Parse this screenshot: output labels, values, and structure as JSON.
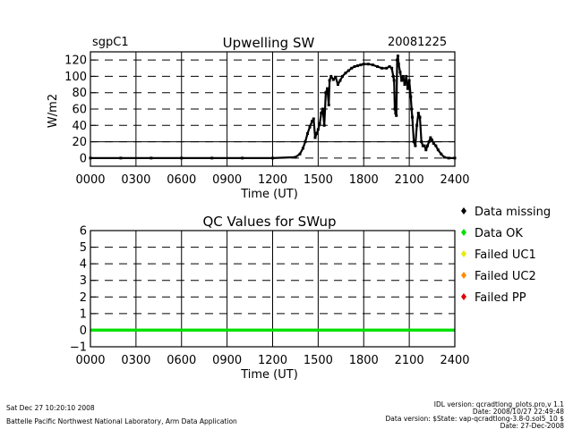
{
  "header": {
    "site": "sgpC1",
    "date": "20081225"
  },
  "legend": [
    {
      "label": "Data missing",
      "color": "#000000"
    },
    {
      "label": "Data OK",
      "color": "#00e000"
    },
    {
      "label": "Failed UC1",
      "color": "#e8e800"
    },
    {
      "label": "Failed UC2",
      "color": "#ff8c00"
    },
    {
      "label": "Failed PP",
      "color": "#e00000"
    }
  ],
  "footer": {
    "run_time": "Sat Dec 27 10:20:10 2008",
    "org": "Battelle Pacific Northwest National Laboratory, Arm Data Application",
    "idl_version": "IDL version: qcradtlong_plots.pro,v 1.1",
    "idl_date": "Date: 2008/10/27 22:49:48",
    "data_version": "Data version: $State: vap-qcradtlong-3.8-0.sol5_10 $",
    "data_date": "Date: 27-Dec-2008"
  },
  "chart_data": [
    {
      "type": "scatter",
      "title": "Upwelling SW",
      "xlabel": "Time (UT)",
      "ylabel": "W/m2",
      "xlim": [
        0,
        2400
      ],
      "ylim": [
        -10,
        130
      ],
      "x_ticks": [
        "0000",
        "0300",
        "0600",
        "0900",
        "1200",
        "1500",
        "1800",
        "2100",
        "2400"
      ],
      "y_ticks": [
        "0",
        "20",
        "40",
        "60",
        "80",
        "100",
        "120"
      ],
      "x_tick_values": [
        0,
        300,
        600,
        900,
        1200,
        1500,
        1800,
        2100,
        2400
      ],
      "y_tick_values": [
        0,
        20,
        40,
        60,
        80,
        100,
        120
      ],
      "reference_line_y": 20,
      "series": [
        {
          "color": "#000000",
          "points": [
            [
              0,
              0
            ],
            [
              200,
              0
            ],
            [
              400,
              0
            ],
            [
              600,
              0
            ],
            [
              800,
              0
            ],
            [
              1000,
              0
            ],
            [
              1200,
              0
            ],
            [
              1350,
              1
            ],
            [
              1380,
              5
            ],
            [
              1400,
              12
            ],
            [
              1415,
              20
            ],
            [
              1430,
              30
            ],
            [
              1445,
              38
            ],
            [
              1460,
              45
            ],
            [
              1470,
              48
            ],
            [
              1480,
              25
            ],
            [
              1490,
              30
            ],
            [
              1500,
              35
            ],
            [
              1510,
              42
            ],
            [
              1520,
              55
            ],
            [
              1530,
              60
            ],
            [
              1540,
              40
            ],
            [
              1550,
              80
            ],
            [
              1560,
              85
            ],
            [
              1570,
              65
            ],
            [
              1575,
              95
            ],
            [
              1585,
              100
            ],
            [
              1600,
              96
            ],
            [
              1615,
              99
            ],
            [
              1630,
              90
            ],
            [
              1645,
              95
            ],
            [
              1660,
              100
            ],
            [
              1680,
              104
            ],
            [
              1700,
              107
            ],
            [
              1720,
              110
            ],
            [
              1740,
              112
            ],
            [
              1760,
              113
            ],
            [
              1780,
              114
            ],
            [
              1800,
              115
            ],
            [
              1830,
              115
            ],
            [
              1860,
              114
            ],
            [
              1890,
              112
            ],
            [
              1920,
              110
            ],
            [
              1950,
              110
            ],
            [
              1970,
              112
            ],
            [
              1985,
              110
            ],
            [
              1995,
              100
            ],
            [
              2000,
              95
            ],
            [
              2005,
              60
            ],
            [
              2010,
              55
            ],
            [
              2015,
              52
            ],
            [
              2020,
              120
            ],
            [
              2025,
              125
            ],
            [
              2030,
              115
            ],
            [
              2040,
              105
            ],
            [
              2050,
              95
            ],
            [
              2060,
              100
            ],
            [
              2070,
              90
            ],
            [
              2080,
              100
            ],
            [
              2090,
              85
            ],
            [
              2100,
              95
            ],
            [
              2110,
              75
            ],
            [
              2115,
              60
            ],
            [
              2120,
              50
            ],
            [
              2130,
              20
            ],
            [
              2140,
              15
            ],
            [
              2150,
              40
            ],
            [
              2160,
              55
            ],
            [
              2170,
              50
            ],
            [
              2180,
              20
            ],
            [
              2190,
              15
            ],
            [
              2200,
              15
            ],
            [
              2210,
              10
            ],
            [
              2220,
              15
            ],
            [
              2230,
              20
            ],
            [
              2240,
              25
            ],
            [
              2250,
              22
            ],
            [
              2260,
              18
            ],
            [
              2275,
              15
            ],
            [
              2290,
              10
            ],
            [
              2310,
              5
            ],
            [
              2330,
              1
            ],
            [
              2360,
              0
            ],
            [
              2400,
              0
            ]
          ]
        }
      ]
    },
    {
      "type": "line",
      "title": "QC Values for SWup",
      "xlabel": "Time (UT)",
      "ylabel": "",
      "xlim": [
        0,
        2400
      ],
      "ylim": [
        -1,
        6
      ],
      "x_ticks": [
        "0000",
        "0300",
        "0600",
        "0900",
        "1200",
        "1500",
        "1800",
        "2100",
        "2400"
      ],
      "y_ticks": [
        "−1",
        "0",
        "1",
        "2",
        "3",
        "4",
        "5",
        "6"
      ],
      "x_tick_values": [
        0,
        300,
        600,
        900,
        1200,
        1500,
        1800,
        2100,
        2400
      ],
      "y_tick_values": [
        -1,
        0,
        1,
        2,
        3,
        4,
        5,
        6
      ],
      "series": [
        {
          "color": "#00e000",
          "x": [
            0,
            2400
          ],
          "y": [
            0,
            0
          ]
        }
      ]
    }
  ]
}
